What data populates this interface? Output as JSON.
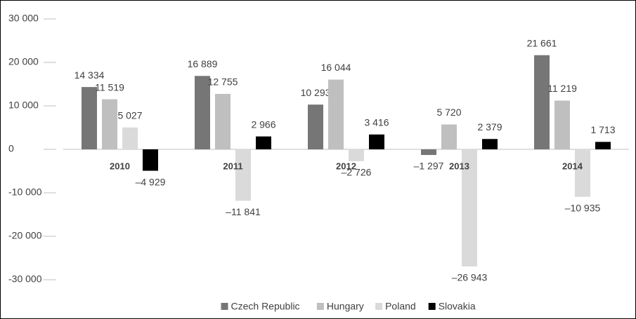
{
  "chart_data": {
    "type": "bar",
    "categories": [
      "2010",
      "2011",
      "2012",
      "2013",
      "2014"
    ],
    "series": [
      {
        "name": "Czech Republic",
        "color": "#767676",
        "values": [
          14334,
          16889,
          10293,
          -1297,
          21661
        ],
        "value_labels": [
          "14 334",
          "16 889",
          "10 293",
          "–1 297",
          "21 661"
        ]
      },
      {
        "name": "Hungary",
        "color": "#bfbfbf",
        "values": [
          11519,
          12755,
          16044,
          5720,
          11219
        ],
        "value_labels": [
          "11 519",
          "12 755",
          "16 044",
          "5 720",
          "11 219"
        ]
      },
      {
        "name": "Poland",
        "color": "#dadada",
        "values": [
          5027,
          -11841,
          -2726,
          -26943,
          -10935
        ],
        "value_labels": [
          "5 027",
          "–11 841",
          "–2 726",
          "–26 943",
          "–10 935"
        ]
      },
      {
        "name": "Slovakia",
        "color": "#000000",
        "values": [
          -4929,
          2966,
          3416,
          2379,
          1713
        ],
        "value_labels": [
          "–4 929",
          "2 966",
          "3 416",
          "2 379",
          "1 713"
        ]
      }
    ],
    "ylim": [
      -30000,
      30000
    ],
    "yticks": [
      {
        "value": -30000,
        "label": "-30 000"
      },
      {
        "value": -20000,
        "label": "-20 000"
      },
      {
        "value": -10000,
        "label": "-10 000"
      },
      0,
      {
        "value": 10000,
        "label": "10 000"
      },
      {
        "value": 20000,
        "label": "20 000"
      },
      {
        "value": 30000,
        "label": "30 000"
      }
    ],
    "legend": "bottom"
  }
}
